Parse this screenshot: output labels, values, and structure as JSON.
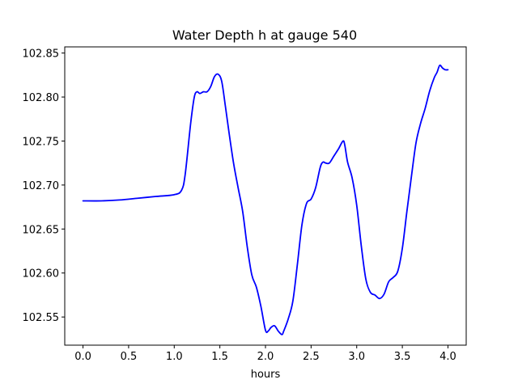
{
  "chart_data": {
    "type": "line",
    "title": "Water Depth h at gauge 540",
    "xlabel": "hours",
    "ylabel": "",
    "xlim": [
      -0.2,
      4.2
    ],
    "ylim": [
      102.518,
      102.857
    ],
    "x_ticks": [
      0.0,
      0.5,
      1.0,
      1.5,
      2.0,
      2.5,
      3.0,
      3.5,
      4.0
    ],
    "x_tick_labels": [
      "0.0",
      "0.5",
      "1.0",
      "1.5",
      "2.0",
      "2.5",
      "3.0",
      "3.5",
      "4.0"
    ],
    "y_ticks": [
      102.55,
      102.6,
      102.65,
      102.7,
      102.75,
      102.8,
      102.85
    ],
    "y_tick_labels": [
      "102.55",
      "102.60",
      "102.65",
      "102.70",
      "102.75",
      "102.80",
      "102.85"
    ],
    "grid": false,
    "series": [
      {
        "color": "#0000ff",
        "x": [
          0.0,
          0.2,
          0.4,
          0.6,
          0.8,
          1.0,
          1.08,
          1.12,
          1.18,
          1.22,
          1.25,
          1.28,
          1.32,
          1.36,
          1.4,
          1.44,
          1.48,
          1.52,
          1.56,
          1.6,
          1.65,
          1.7,
          1.75,
          1.8,
          1.85,
          1.9,
          1.95,
          2.0,
          2.03,
          2.06,
          2.1,
          2.14,
          2.18,
          2.2,
          2.25,
          2.3,
          2.35,
          2.4,
          2.45,
          2.5,
          2.55,
          2.6,
          2.63,
          2.66,
          2.7,
          2.75,
          2.8,
          2.85,
          2.87,
          2.9,
          2.95,
          3.0,
          3.05,
          3.1,
          3.15,
          3.2,
          3.25,
          3.3,
          3.35,
          3.4,
          3.45,
          3.5,
          3.55,
          3.6,
          3.65,
          3.7,
          3.75,
          3.8,
          3.85,
          3.88,
          3.91,
          3.94,
          3.97,
          4.0
        ],
        "y": [
          102.682,
          102.682,
          102.683,
          102.685,
          102.687,
          102.689,
          102.694,
          102.712,
          102.77,
          102.8,
          102.806,
          102.804,
          102.806,
          102.806,
          102.812,
          102.823,
          102.826,
          102.818,
          102.79,
          102.76,
          102.725,
          102.697,
          102.67,
          102.63,
          102.598,
          102.584,
          102.562,
          102.535,
          102.534,
          102.538,
          102.54,
          102.534,
          102.53,
          102.534,
          102.548,
          102.568,
          102.61,
          102.655,
          102.679,
          102.684,
          102.697,
          102.72,
          102.726,
          102.725,
          102.725,
          102.733,
          102.741,
          102.75,
          102.745,
          102.726,
          102.708,
          102.677,
          102.631,
          102.593,
          102.578,
          102.575,
          102.571,
          102.576,
          102.59,
          102.595,
          102.602,
          102.628,
          102.67,
          102.71,
          102.748,
          102.77,
          102.787,
          102.807,
          102.822,
          102.828,
          102.836,
          102.833,
          102.831,
          102.831
        ]
      }
    ]
  }
}
